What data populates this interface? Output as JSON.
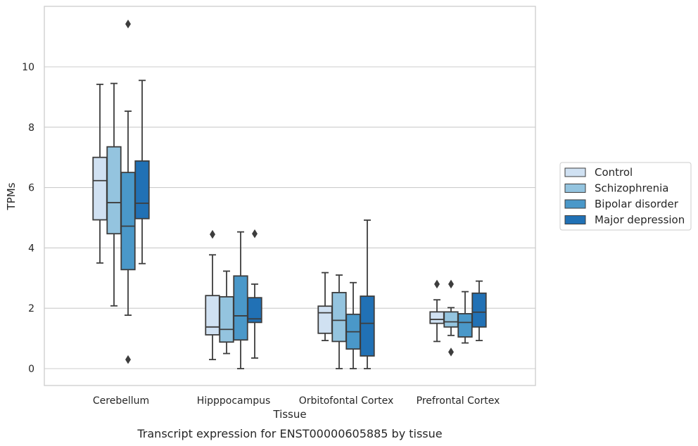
{
  "chart_data": {
    "type": "box",
    "caption": "Transcript expression for ENST00000605885 by tissue",
    "xlabel": "Tissue",
    "ylabel": "TPMs",
    "ylim": [
      -0.55,
      12.0
    ],
    "yticks": [
      0,
      2,
      4,
      6,
      8,
      10
    ],
    "grid": true,
    "legend_placement": "right",
    "categories": [
      "Cerebellum",
      "Hipppocampus",
      "Orbitofontal Cortex",
      "Prefrontal Cortex"
    ],
    "series": [
      {
        "name": "Control",
        "color": "#d0e1f2",
        "boxes": [
          {
            "whisker_low": 3.5,
            "q1": 4.93,
            "median": 6.23,
            "q3": 7.0,
            "whisker_high": 9.42,
            "outliers": []
          },
          {
            "whisker_low": 0.3,
            "q1": 1.12,
            "median": 1.38,
            "q3": 2.42,
            "whisker_high": 3.77,
            "outliers": [
              4.45
            ]
          },
          {
            "whisker_low": 0.93,
            "q1": 1.17,
            "median": 1.85,
            "q3": 2.07,
            "whisker_high": 3.18,
            "outliers": []
          },
          {
            "whisker_low": 0.9,
            "q1": 1.5,
            "median": 1.63,
            "q3": 1.88,
            "whisker_high": 2.28,
            "outliers": [
              2.8
            ]
          }
        ]
      },
      {
        "name": "Schizophrenia",
        "color": "#94c4df",
        "boxes": [
          {
            "whisker_low": 2.08,
            "q1": 4.47,
            "median": 5.5,
            "q3": 7.35,
            "whisker_high": 9.45,
            "outliers": []
          },
          {
            "whisker_low": 0.5,
            "q1": 0.88,
            "median": 1.3,
            "q3": 2.38,
            "whisker_high": 3.23,
            "outliers": []
          },
          {
            "whisker_low": 0.0,
            "q1": 0.9,
            "median": 1.6,
            "q3": 2.52,
            "whisker_high": 3.1,
            "outliers": []
          },
          {
            "whisker_low": 1.1,
            "q1": 1.38,
            "median": 1.55,
            "q3": 1.88,
            "whisker_high": 2.02,
            "outliers": [
              0.55,
              2.8
            ]
          }
        ]
      },
      {
        "name": "Bipolar disorder",
        "color": "#4a98c9",
        "boxes": [
          {
            "whisker_low": 1.77,
            "q1": 3.28,
            "median": 4.72,
            "q3": 6.5,
            "whisker_high": 8.53,
            "outliers": [
              0.3,
              11.42
            ]
          },
          {
            "whisker_low": 0.0,
            "q1": 0.95,
            "median": 1.75,
            "q3": 3.07,
            "whisker_high": 4.53,
            "outliers": []
          },
          {
            "whisker_low": 0.0,
            "q1": 0.65,
            "median": 1.22,
            "q3": 1.8,
            "whisker_high": 2.85,
            "outliers": []
          },
          {
            "whisker_low": 0.85,
            "q1": 1.05,
            "median": 1.53,
            "q3": 1.82,
            "whisker_high": 2.55,
            "outliers": []
          }
        ]
      },
      {
        "name": "Major depression",
        "color": "#2171b5",
        "boxes": [
          {
            "whisker_low": 3.48,
            "q1": 4.97,
            "median": 5.48,
            "q3": 6.88,
            "whisker_high": 9.55,
            "outliers": []
          },
          {
            "whisker_low": 0.35,
            "q1": 1.53,
            "median": 1.65,
            "q3": 2.35,
            "whisker_high": 2.8,
            "outliers": [
              4.47
            ]
          },
          {
            "whisker_low": 0.0,
            "q1": 0.42,
            "median": 1.5,
            "q3": 2.4,
            "whisker_high": 4.92,
            "outliers": []
          },
          {
            "whisker_low": 0.93,
            "q1": 1.38,
            "median": 1.87,
            "q3": 2.5,
            "whisker_high": 2.9,
            "outliers": []
          }
        ]
      }
    ]
  }
}
